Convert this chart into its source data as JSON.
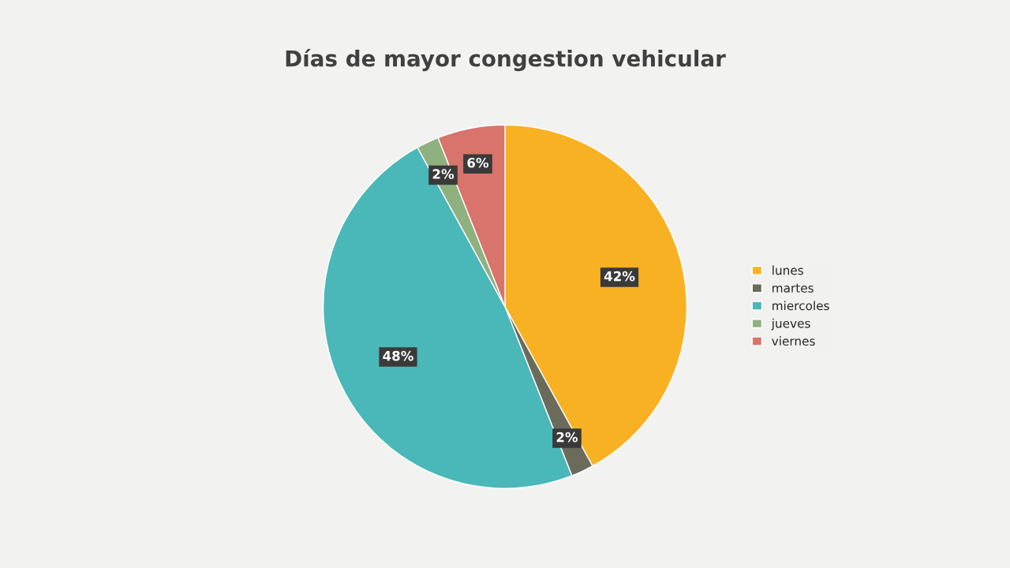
{
  "chart_data": {
    "type": "pie",
    "title": "Días de mayor congestion vehicular",
    "categories": [
      "lunes",
      "martes",
      "miercoles",
      "jueves",
      "viernes"
    ],
    "values": [
      42,
      2,
      48,
      2,
      6
    ],
    "value_labels": [
      "42%",
      "2%",
      "48%",
      "2%",
      "6%"
    ],
    "colors": [
      "#f8b122",
      "#6b6b5c",
      "#4ab7b8",
      "#8fb07f",
      "#d8746b"
    ],
    "legend": "right"
  }
}
